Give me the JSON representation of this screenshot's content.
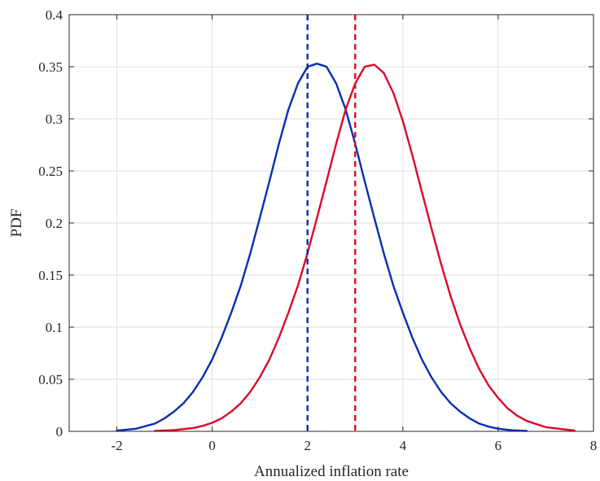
{
  "chart_data": {
    "type": "line",
    "title": "",
    "xlabel": "Annualized inflation rate",
    "ylabel": "PDF",
    "xlim": [
      -3,
      8
    ],
    "ylim": [
      0,
      0.4
    ],
    "xticks": [
      -2,
      0,
      2,
      4,
      6,
      8
    ],
    "yticks": [
      0,
      0.05,
      0.1,
      0.15,
      0.2,
      0.25,
      0.3,
      0.35,
      0.4
    ],
    "xtick_labels": [
      "-2",
      "0",
      "2",
      "4",
      "6",
      "8"
    ],
    "ytick_labels": [
      "0",
      "0.05",
      "0.1",
      "0.15",
      "0.2",
      "0.25",
      "0.3",
      "0.35",
      "0.4"
    ],
    "grid": true,
    "series": [
      {
        "color": "#0a2db4",
        "style": "solid",
        "x": [
          -2.0,
          -1.6,
          -1.2,
          -1.0,
          -0.8,
          -0.6,
          -0.4,
          -0.2,
          0.0,
          0.2,
          0.4,
          0.6,
          0.8,
          1.0,
          1.2,
          1.4,
          1.6,
          1.8,
          2.0,
          2.2,
          2.4,
          2.6,
          2.8,
          3.0,
          3.2,
          3.4,
          3.6,
          3.8,
          4.0,
          4.2,
          4.4,
          4.6,
          4.8,
          5.0,
          5.2,
          5.4,
          5.6,
          5.8,
          6.0,
          6.3,
          6.6
        ],
        "y": [
          0.0007,
          0.0025,
          0.0075,
          0.0125,
          0.019,
          0.027,
          0.038,
          0.052,
          0.069,
          0.09,
          0.114,
          0.14,
          0.171,
          0.205,
          0.24,
          0.276,
          0.309,
          0.334,
          0.35,
          0.353,
          0.35,
          0.334,
          0.309,
          0.276,
          0.24,
          0.205,
          0.171,
          0.14,
          0.114,
          0.09,
          0.069,
          0.052,
          0.038,
          0.027,
          0.019,
          0.0125,
          0.0075,
          0.0045,
          0.0025,
          0.001,
          0.0004
        ]
      },
      {
        "color": "#dc0a28",
        "style": "solid",
        "x": [
          -1.2,
          -0.8,
          -0.4,
          -0.2,
          0.0,
          0.2,
          0.4,
          0.6,
          0.8,
          1.0,
          1.2,
          1.4,
          1.6,
          1.8,
          2.0,
          2.2,
          2.4,
          2.6,
          2.8,
          3.0,
          3.2,
          3.4,
          3.6,
          3.8,
          4.0,
          4.2,
          4.4,
          4.6,
          4.8,
          5.0,
          5.2,
          5.4,
          5.6,
          5.8,
          6.0,
          6.2,
          6.4,
          6.6,
          7.0,
          7.6
        ],
        "y": [
          0.0005,
          0.0012,
          0.0032,
          0.0052,
          0.0082,
          0.0125,
          0.019,
          0.027,
          0.038,
          0.052,
          0.069,
          0.09,
          0.114,
          0.14,
          0.171,
          0.205,
          0.24,
          0.276,
          0.309,
          0.334,
          0.35,
          0.352,
          0.344,
          0.325,
          0.298,
          0.265,
          0.23,
          0.195,
          0.161,
          0.13,
          0.103,
          0.08,
          0.06,
          0.044,
          0.032,
          0.022,
          0.015,
          0.01,
          0.004,
          0.0008
        ]
      }
    ],
    "vlines": [
      {
        "x": 2,
        "color": "#0a2db4",
        "style": "dashed"
      },
      {
        "x": 3,
        "color": "#dc0a28",
        "style": "dashed"
      }
    ]
  }
}
